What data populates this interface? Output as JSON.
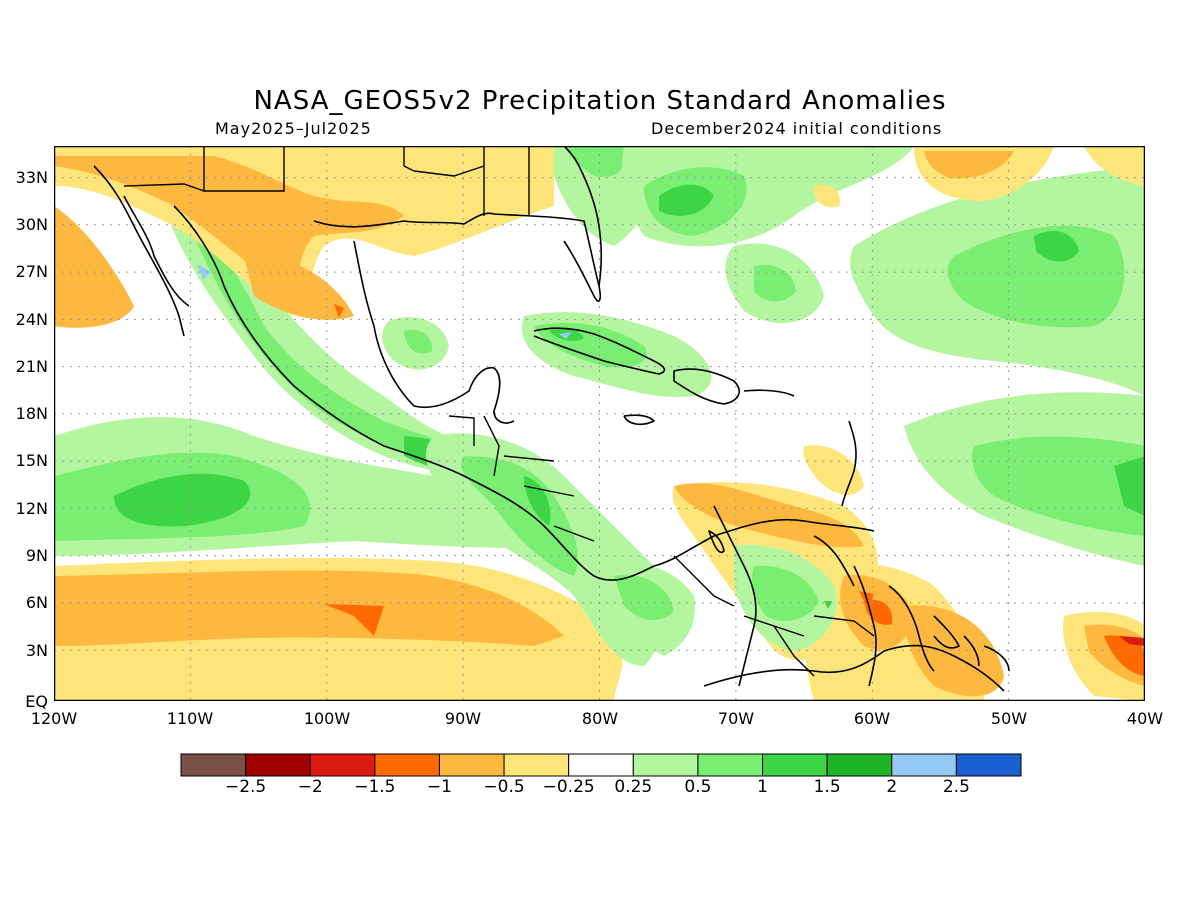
{
  "header": {
    "title": "NASA_GEOS5v2 Precipitation Standard Anomalies",
    "period": "May2025–Jul2025",
    "init": "December2024 initial conditions"
  },
  "axes": {
    "lat_labels": [
      "33N",
      "30N",
      "27N",
      "24N",
      "21N",
      "18N",
      "15N",
      "12N",
      "9N",
      "6N",
      "3N",
      "EQ"
    ],
    "lon_labels": [
      "120W",
      "110W",
      "100W",
      "90W",
      "80W",
      "70W",
      "60W",
      "50W",
      "40W"
    ]
  },
  "legend": {
    "colors": [
      "#7a5047",
      "#a00000",
      "#dd1a10",
      "#ff6a00",
      "#fdb83f",
      "#fee57a",
      "#ffffff",
      "#b4f5a0",
      "#7aee72",
      "#3dd445",
      "#1fb426",
      "#94c9f5",
      "#1a60d0"
    ],
    "labels": [
      "−2.5",
      "−2",
      "−1.5",
      "−1",
      "−0.5",
      "−0.25",
      "0.25",
      "0.5",
      "1",
      "1.5",
      "2",
      "2.5"
    ]
  },
  "palette": {
    "brown": "#fdb83f",
    "light_orange": "#fee57a",
    "light_green": "#b4f5a0",
    "green": "#7aee72",
    "mid_green": "#3dd445",
    "dark_green": "#1fb426",
    "orange_red": "#ff6a00",
    "light_blue": "#94c9f5"
  }
}
